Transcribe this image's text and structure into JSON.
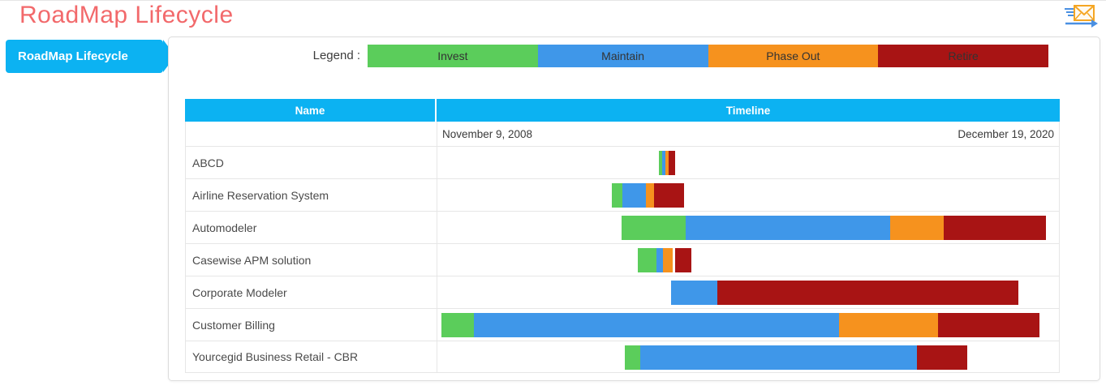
{
  "page": {
    "title": "RoadMap Lifecycle"
  },
  "colors": {
    "accent_blue": "#0cb2f2",
    "title_red": "#f2696b",
    "invest_green": "#5bcd5b",
    "maintain_blue": "#3f97e9",
    "phaseout_orange": "#f6921e",
    "retire_red": "#a81414"
  },
  "sidebar": {
    "items": [
      {
        "label": "RoadMap Lifecycle",
        "active": true
      }
    ]
  },
  "legend": {
    "label": "Legend :",
    "items": [
      {
        "label": "Invest",
        "color": "#5bcd5b"
      },
      {
        "label": "Maintain",
        "color": "#3f97e9"
      },
      {
        "label": "Phase Out",
        "color": "#f6921e"
      },
      {
        "label": "Retire",
        "color": "#a81414"
      }
    ]
  },
  "table": {
    "columns": [
      "Name",
      "Timeline"
    ],
    "timeline_start_label": "November 9, 2008",
    "timeline_end_label": "December 19, 2020"
  },
  "chart_data": {
    "type": "gantt",
    "title": "RoadMap Lifecycle",
    "x_start_label": "November 9, 2008",
    "x_end_label": "December 19, 2020",
    "phases": [
      "Invest",
      "Maintain",
      "Phase Out",
      "Retire"
    ],
    "unit": "percent of timeline span",
    "rows": [
      {
        "name": "ABCD",
        "segments": [
          {
            "phase": "Invest",
            "left_pct": 35.7,
            "width_pct": 0.5
          },
          {
            "phase": "Maintain",
            "left_pct": 36.2,
            "width_pct": 0.5
          },
          {
            "phase": "Phase Out",
            "left_pct": 36.7,
            "width_pct": 0.5
          },
          {
            "phase": "Retire",
            "left_pct": 37.2,
            "width_pct": 1.0
          }
        ]
      },
      {
        "name": "Airline Reservation System",
        "segments": [
          {
            "phase": "Invest",
            "left_pct": 28.1,
            "width_pct": 1.7
          },
          {
            "phase": "Maintain",
            "left_pct": 29.8,
            "width_pct": 3.7
          },
          {
            "phase": "Phase Out",
            "left_pct": 33.5,
            "width_pct": 1.3
          },
          {
            "phase": "Retire",
            "left_pct": 34.8,
            "width_pct": 4.9
          }
        ]
      },
      {
        "name": "Automodeler",
        "segments": [
          {
            "phase": "Invest",
            "left_pct": 29.6,
            "width_pct": 10.4
          },
          {
            "phase": "Maintain",
            "left_pct": 40.0,
            "width_pct": 32.9
          },
          {
            "phase": "Phase Out",
            "left_pct": 72.9,
            "width_pct": 8.5
          },
          {
            "phase": "Retire",
            "left_pct": 81.4,
            "width_pct": 16.5
          }
        ]
      },
      {
        "name": "Casewise APM solution",
        "segments": [
          {
            "phase": "Invest",
            "left_pct": 32.3,
            "width_pct": 3.0
          },
          {
            "phase": "Maintain",
            "left_pct": 35.3,
            "width_pct": 1.0
          },
          {
            "phase": "Phase Out",
            "left_pct": 36.3,
            "width_pct": 1.6
          },
          {
            "phase": "Retire",
            "left_pct": 38.2,
            "width_pct": 2.7
          }
        ]
      },
      {
        "name": "Corporate Modeler",
        "segments": [
          {
            "phase": "Maintain",
            "left_pct": 37.6,
            "width_pct": 7.4
          },
          {
            "phase": "Retire",
            "left_pct": 45.0,
            "width_pct": 48.5
          }
        ]
      },
      {
        "name": "Customer Billing",
        "segments": [
          {
            "phase": "Invest",
            "left_pct": 0.7,
            "width_pct": 5.2
          },
          {
            "phase": "Maintain",
            "left_pct": 5.9,
            "width_pct": 58.7
          },
          {
            "phase": "Phase Out",
            "left_pct": 64.6,
            "width_pct": 16.0
          },
          {
            "phase": "Retire",
            "left_pct": 80.6,
            "width_pct": 16.3
          }
        ]
      },
      {
        "name": "Yourcegid Business Retail - CBR",
        "segments": [
          {
            "phase": "Invest",
            "left_pct": 30.1,
            "width_pct": 2.5
          },
          {
            "phase": "Maintain",
            "left_pct": 32.6,
            "width_pct": 44.5
          },
          {
            "phase": "Retire",
            "left_pct": 77.1,
            "width_pct": 8.1
          }
        ]
      }
    ]
  }
}
